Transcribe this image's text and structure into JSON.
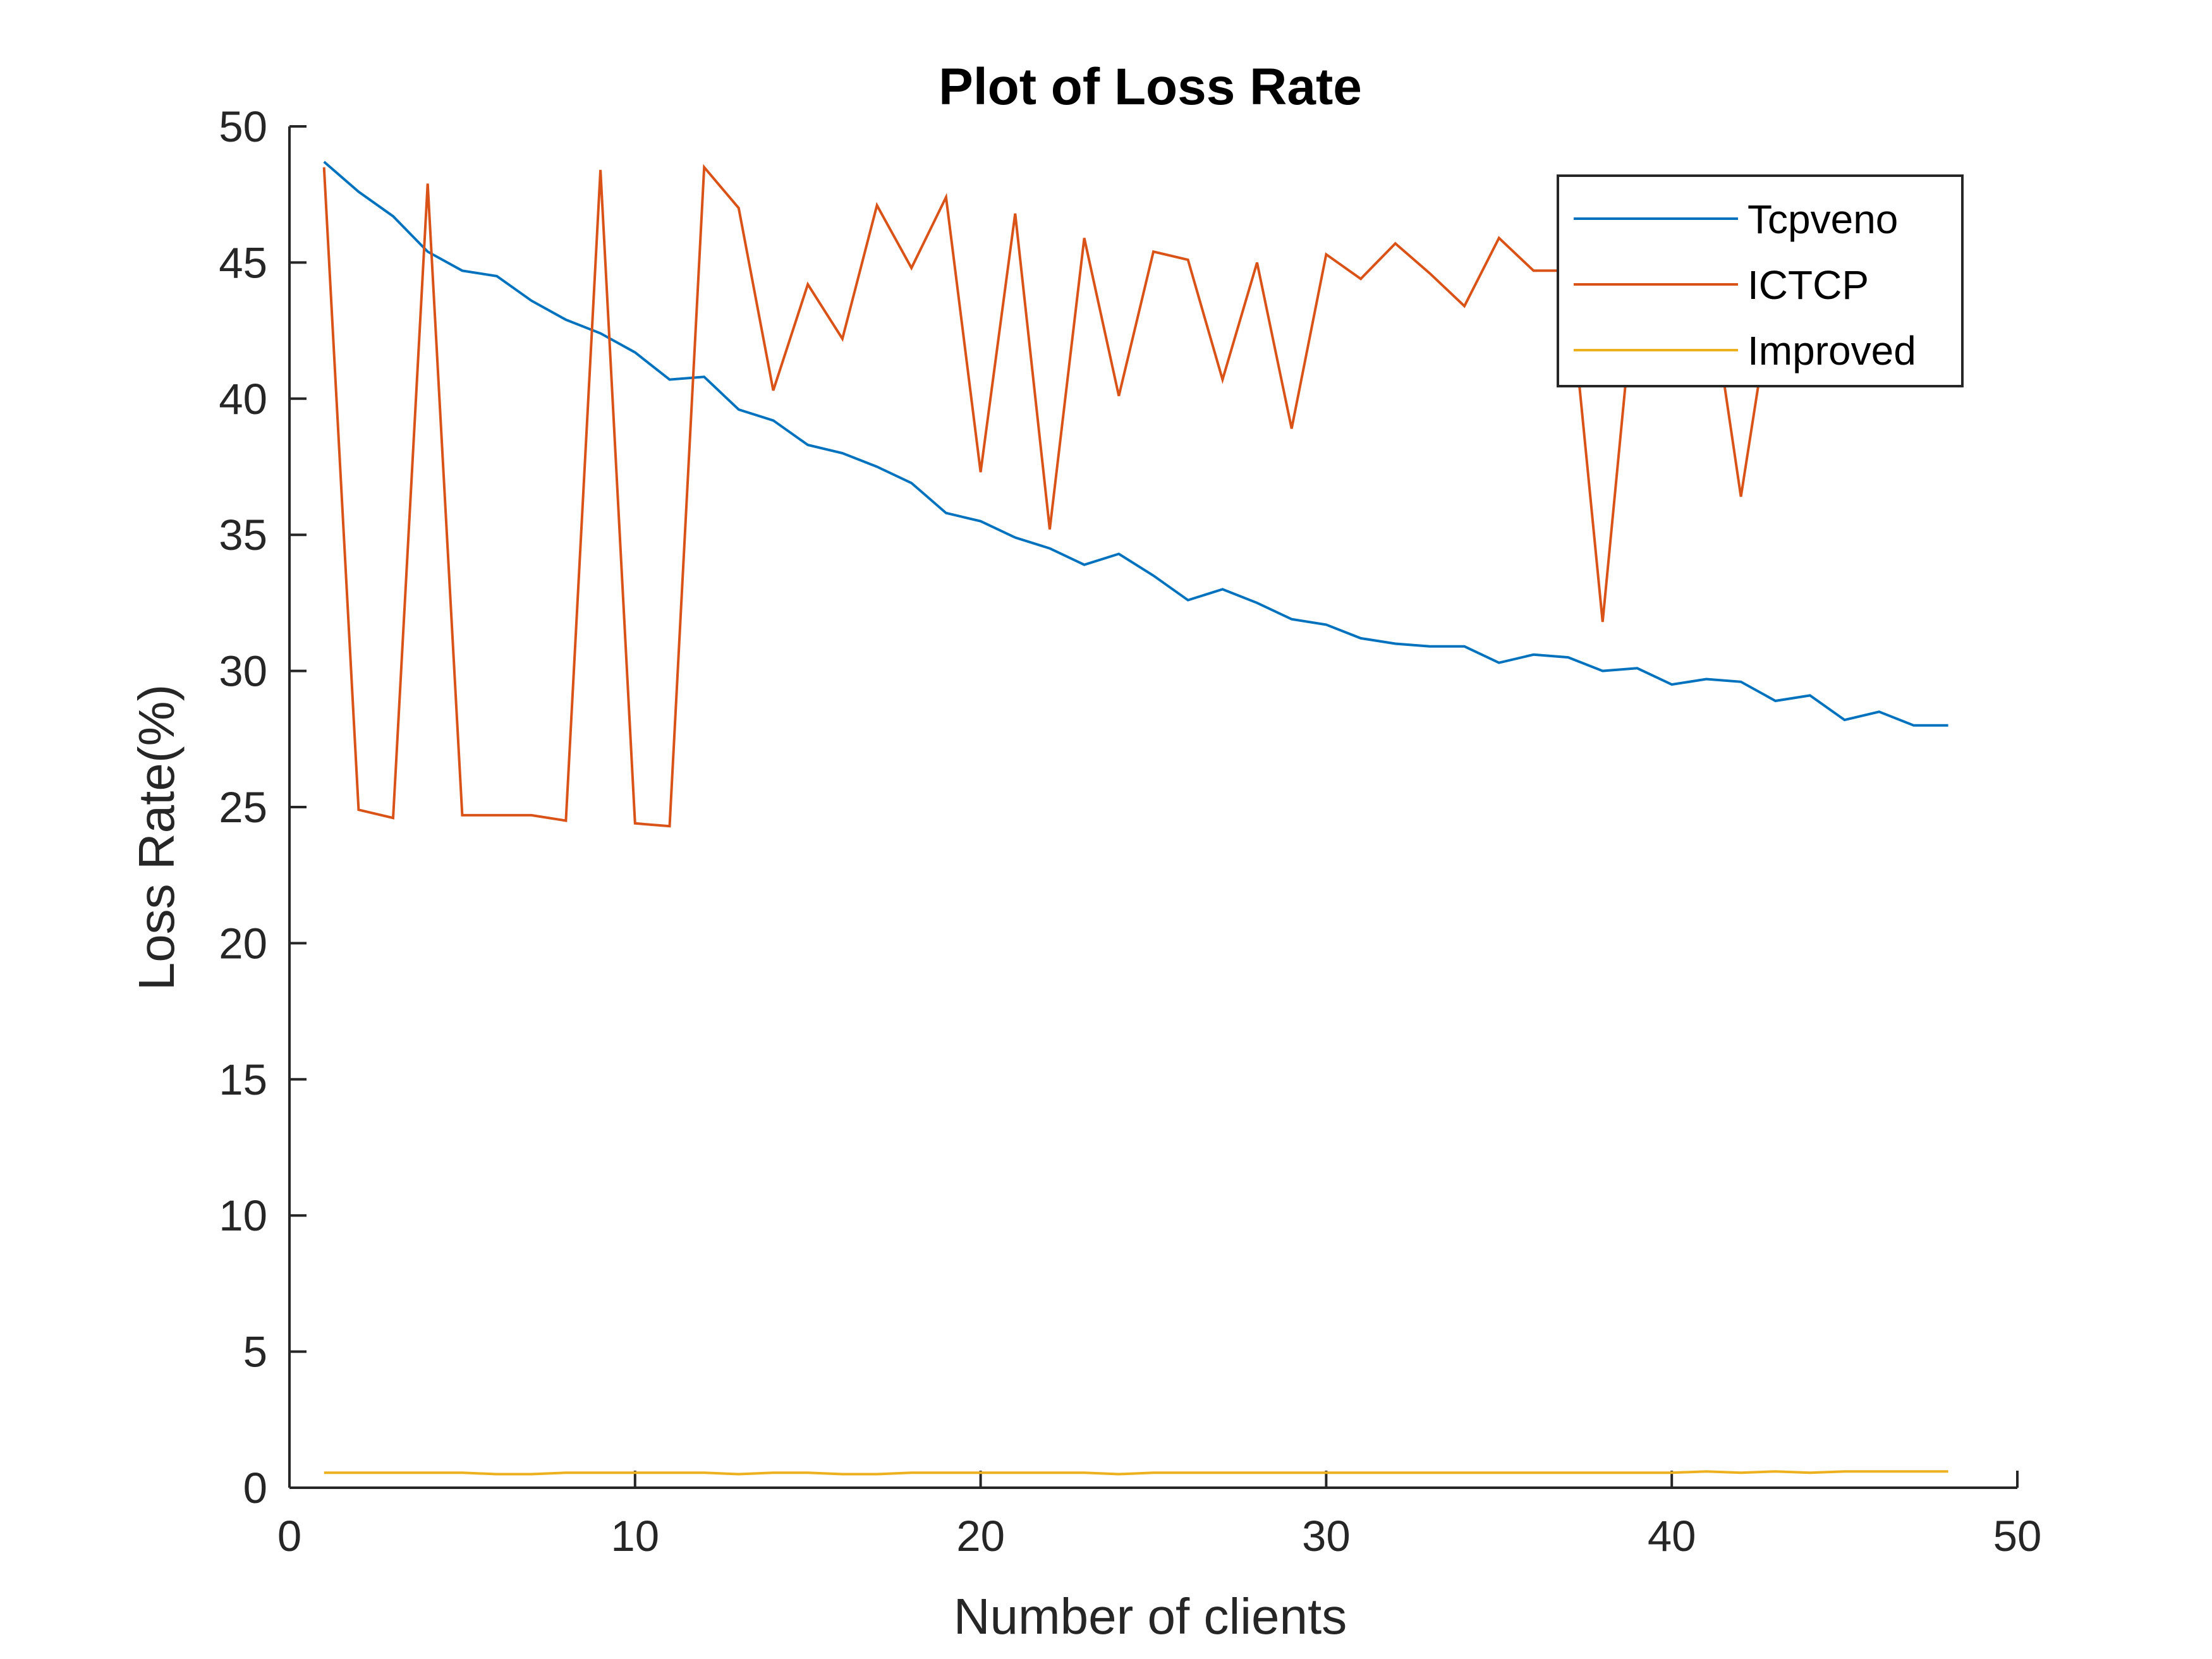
{
  "chart_data": {
    "type": "line",
    "title": "Plot of Loss Rate",
    "xlabel": "Number of clients",
    "ylabel": "Loss Rate(%)",
    "xlim": [
      0,
      50
    ],
    "ylim": [
      0,
      50
    ],
    "xticks": [
      0,
      10,
      20,
      30,
      40,
      50
    ],
    "yticks": [
      0,
      5,
      10,
      15,
      20,
      25,
      30,
      35,
      40,
      45,
      50
    ],
    "grid": false,
    "legend_position": "top-right",
    "x": [
      1,
      2,
      3,
      4,
      5,
      6,
      7,
      8,
      9,
      10,
      11,
      12,
      13,
      14,
      15,
      16,
      17,
      18,
      19,
      20,
      21,
      22,
      23,
      24,
      25,
      26,
      27,
      28,
      29,
      30,
      31,
      32,
      33,
      34,
      35,
      36,
      37,
      38,
      39,
      40,
      41,
      42,
      43,
      44,
      45,
      46,
      47,
      48
    ],
    "series": [
      {
        "name": "Tcpveno",
        "color": "#0072BD",
        "values": [
          48.7,
          47.6,
          46.7,
          45.4,
          44.7,
          44.5,
          43.6,
          42.9,
          42.4,
          41.7,
          40.7,
          40.8,
          39.6,
          39.2,
          38.3,
          38.0,
          37.5,
          36.9,
          35.8,
          35.5,
          34.9,
          34.5,
          33.9,
          34.3,
          33.5,
          32.6,
          33.0,
          32.5,
          31.9,
          31.7,
          31.2,
          31.0,
          30.9,
          30.9,
          30.3,
          30.6,
          30.5,
          30.0,
          30.1,
          29.5,
          29.7,
          29.6,
          28.9,
          29.1,
          28.2,
          28.5,
          28.0,
          28.0
        ]
      },
      {
        "name": "ICTCP",
        "color": "#D95319",
        "values": [
          48.5,
          24.9,
          24.6,
          47.9,
          24.7,
          24.7,
          24.7,
          24.5,
          48.4,
          24.4,
          24.3,
          48.5,
          47.0,
          40.3,
          44.2,
          42.2,
          47.1,
          44.8,
          47.4,
          37.3,
          46.8,
          35.2,
          45.9,
          40.1,
          45.4,
          45.1,
          40.7,
          45.0,
          38.9,
          45.3,
          44.4,
          45.7,
          44.6,
          43.4,
          45.9,
          44.7,
          44.7,
          31.8,
          45.0,
          46.0,
          45.0,
          36.4,
          44.5,
          44.0,
          44.0,
          44.0,
          44.0,
          44.0
        ]
      },
      {
        "name": "Improved",
        "color": "#EDB120",
        "values": [
          0.55,
          0.55,
          0.55,
          0.55,
          0.55,
          0.5,
          0.5,
          0.55,
          0.55,
          0.55,
          0.55,
          0.55,
          0.5,
          0.55,
          0.55,
          0.5,
          0.5,
          0.55,
          0.55,
          0.55,
          0.55,
          0.55,
          0.55,
          0.5,
          0.55,
          0.55,
          0.55,
          0.55,
          0.55,
          0.55,
          0.55,
          0.55,
          0.55,
          0.55,
          0.55,
          0.55,
          0.55,
          0.55,
          0.55,
          0.55,
          0.6,
          0.55,
          0.6,
          0.55,
          0.6,
          0.6,
          0.6,
          0.6
        ]
      }
    ]
  }
}
